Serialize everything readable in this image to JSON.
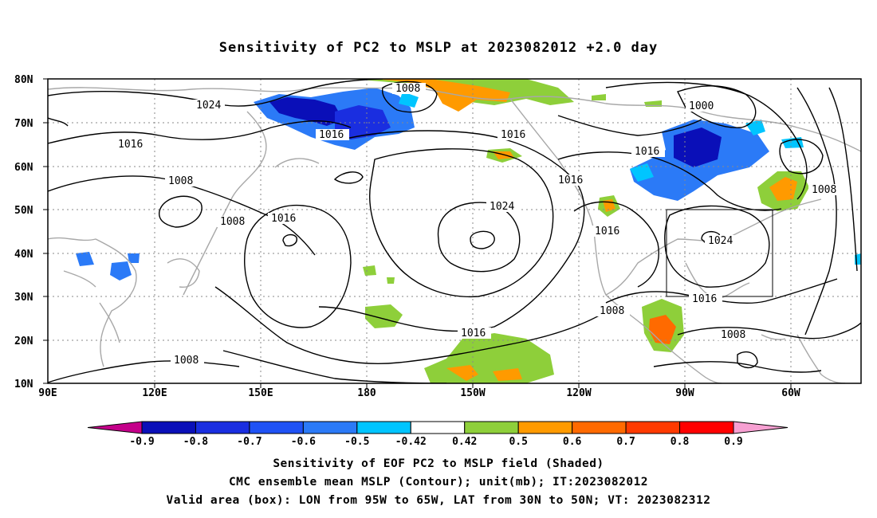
{
  "title": "Sensitivity of PC2 to MSLP at 2023082012 +2.0 day",
  "lat_labels": [
    "80N",
    "70N",
    "60N",
    "50N",
    "40N",
    "30N",
    "20N",
    "10N"
  ],
  "lon_labels": [
    "90E",
    "120E",
    "150E",
    "180",
    "150W",
    "120W",
    "90W",
    "60W"
  ],
  "contour_labels": [
    "1024",
    "1016",
    "1008",
    "1016",
    "1008",
    "1008",
    "1016",
    "1016",
    "1016",
    "1000",
    "1016",
    "1016",
    "1024",
    "1008",
    "1016",
    "1024",
    "1016",
    "1008",
    "1016",
    "1008",
    "1008"
  ],
  "colorbar": {
    "ticks": [
      "-0.9",
      "-0.8",
      "-0.7",
      "-0.6",
      "-0.5",
      "-0.42",
      "0.42",
      "0.5",
      "0.6",
      "0.7",
      "0.8",
      "0.9"
    ],
    "colors": [
      "#c4008a",
      "#0a0fb8",
      "#1a2ee0",
      "#1f52f5",
      "#2b7af7",
      "#00c5ff",
      "#ffffff",
      "#8ecf3a",
      "#ff9a00",
      "#ff6a00",
      "#ff3a00",
      "#ff0000",
      "#f7a0d2"
    ]
  },
  "captions": [
    "Sensitivity of EOF PC2 to MSLP field (Shaded)",
    "CMC ensemble mean MSLP (Contour); unit(mb); IT:2023082012",
    "Valid area (box): LON from 95W to 65W, LAT from 30N to 50N; VT: 2023082312"
  ],
  "valid_box": {
    "lon_min": -95,
    "lon_max": -65,
    "lat_min": 30,
    "lat_max": 50
  }
}
